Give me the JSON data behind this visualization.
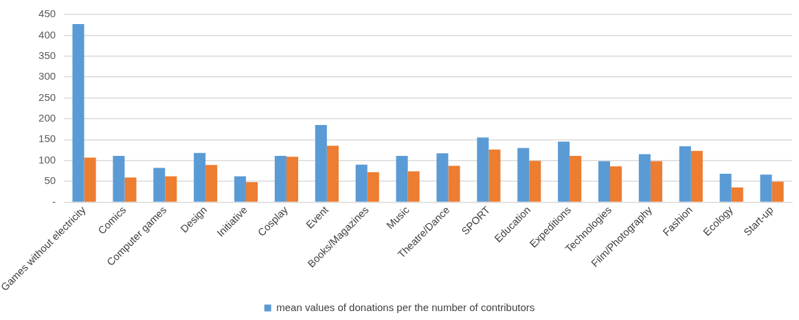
{
  "chart_data": {
    "type": "bar",
    "categories": [
      "Games without electricity",
      "Comics",
      "Computer games",
      "Design",
      "Initiative",
      "Cosplay",
      "Event",
      "Books/Magazines",
      "Music",
      "Theatre/Dance",
      "SPORT",
      "Education",
      "Expeditions",
      "Technologies",
      "Film/Photography",
      "Fashion",
      "Ecology",
      "Start-up"
    ],
    "series": [
      {
        "name": "mean values of donations per the number of contributors",
        "color": "#5b9bd5",
        "values": [
          427,
          111,
          82,
          118,
          62,
          111,
          185,
          90,
          111,
          117,
          155,
          130,
          145,
          98,
          115,
          134,
          68,
          66
        ]
      },
      {
        "color": "#ed7d31",
        "values": [
          107,
          59,
          62,
          89,
          48,
          109,
          135,
          72,
          74,
          87,
          126,
          99,
          111,
          86,
          98,
          123,
          35,
          49
        ]
      }
    ],
    "ylim": [
      0,
      450
    ],
    "yticks": [
      {
        "value": 0,
        "label": "-"
      },
      50,
      100,
      150,
      200,
      250,
      300,
      350,
      400,
      450
    ],
    "grid": "y",
    "legend": "bottom"
  }
}
